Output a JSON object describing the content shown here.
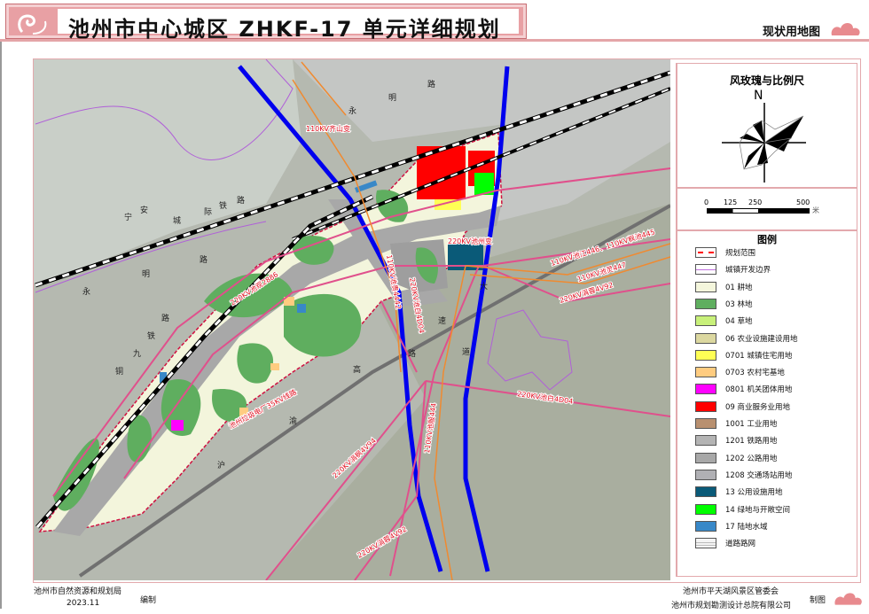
{
  "header": {
    "title": "池州市中心城区  ZHKF-17  单元详细规划",
    "subtitle": "现状用地图"
  },
  "compass": {
    "title": "风玫瑰与比例尺",
    "north": "N",
    "scale_ticks": [
      "0",
      "125",
      "250",
      "500"
    ],
    "scale_unit": "米"
  },
  "legend": {
    "title": "图例",
    "items": [
      {
        "label": "规划范围",
        "color": "#ff0000",
        "style": "dashed-red"
      },
      {
        "label": "城镇开发边界",
        "color": "#c070e0",
        "style": "purple-line"
      },
      {
        "label": "01 耕地",
        "color": "#f4f6dc"
      },
      {
        "label": "03 林地",
        "color": "#5fae5f"
      },
      {
        "label": "04 草地",
        "color": "#c8f07a"
      },
      {
        "label": "06 农业设施建设用地",
        "color": "#dcd8a0"
      },
      {
        "label": "0701 城镇住宅用地",
        "color": "#ffff55"
      },
      {
        "label": "0703 农村宅基地",
        "color": "#ffcc80"
      },
      {
        "label": "0801 机关团体用地",
        "color": "#ff00ff"
      },
      {
        "label": "09 商业服务业用地",
        "color": "#ff0000"
      },
      {
        "label": "1001 工业用地",
        "color": "#b89070"
      },
      {
        "label": "1201 铁路用地",
        "color": "#b4b4b4"
      },
      {
        "label": "1202 公路用地",
        "color": "#a8a8a8"
      },
      {
        "label": "1208 交通场站用地",
        "color": "#b0b0b4"
      },
      {
        "label": "13 公用设施用地",
        "color": "#0a5a78"
      },
      {
        "label": "14 绿地与开敞空间",
        "color": "#00ff00"
      },
      {
        "label": "17 陆地水域",
        "color": "#3888c8"
      },
      {
        "label": "道路路网",
        "color": "#ffffff",
        "style": "road"
      }
    ]
  },
  "map_labels": {
    "road_yongming_top": [
      "永",
      "明",
      "路"
    ],
    "road_ningan": [
      "宁",
      "安",
      "城",
      "际",
      "铁",
      "路"
    ],
    "road_yongming_left": [
      "永",
      "明",
      "路"
    ],
    "road_tongjiu": [
      "铜",
      "九",
      "铁",
      "路"
    ],
    "road_gaosu": [
      "高",
      "速"
    ],
    "road_huyu": [
      "沪",
      "渝"
    ],
    "road_dao": [
      "道",
      "路",
      "大"
    ],
    "power_qishan": "110KV齐山变",
    "power_chizhou_sub": "220KV池州变",
    "power_chijiang": "110KV池江446、110KV枫池445",
    "power_chiling": "110KV池灵447",
    "power_juanrong_a": "220KV涓蓉4V92",
    "power_chibai_a": "220KV池白4D04",
    "power_chiguan": "220KV池观2886",
    "power_chigui": "110KV池贵4442",
    "power_chibai_b": "220KV池白4D04",
    "power_garbage": "池州垃圾电厂35KV线路",
    "power_juanfeng": "220KV涓枫4V94",
    "power_juanrong_b": "220KV涓蓉4V92",
    "power_chiyin": "110KV池殷444"
  },
  "footer": {
    "left_org": "池州市自然资源和规划局",
    "date": "2023.11",
    "compiled": "编制",
    "right_org1": "池州市平天湖风景区管委会",
    "right_org2": "池州市规划勘测设计总院有限公司",
    "drawn": "制图"
  }
}
